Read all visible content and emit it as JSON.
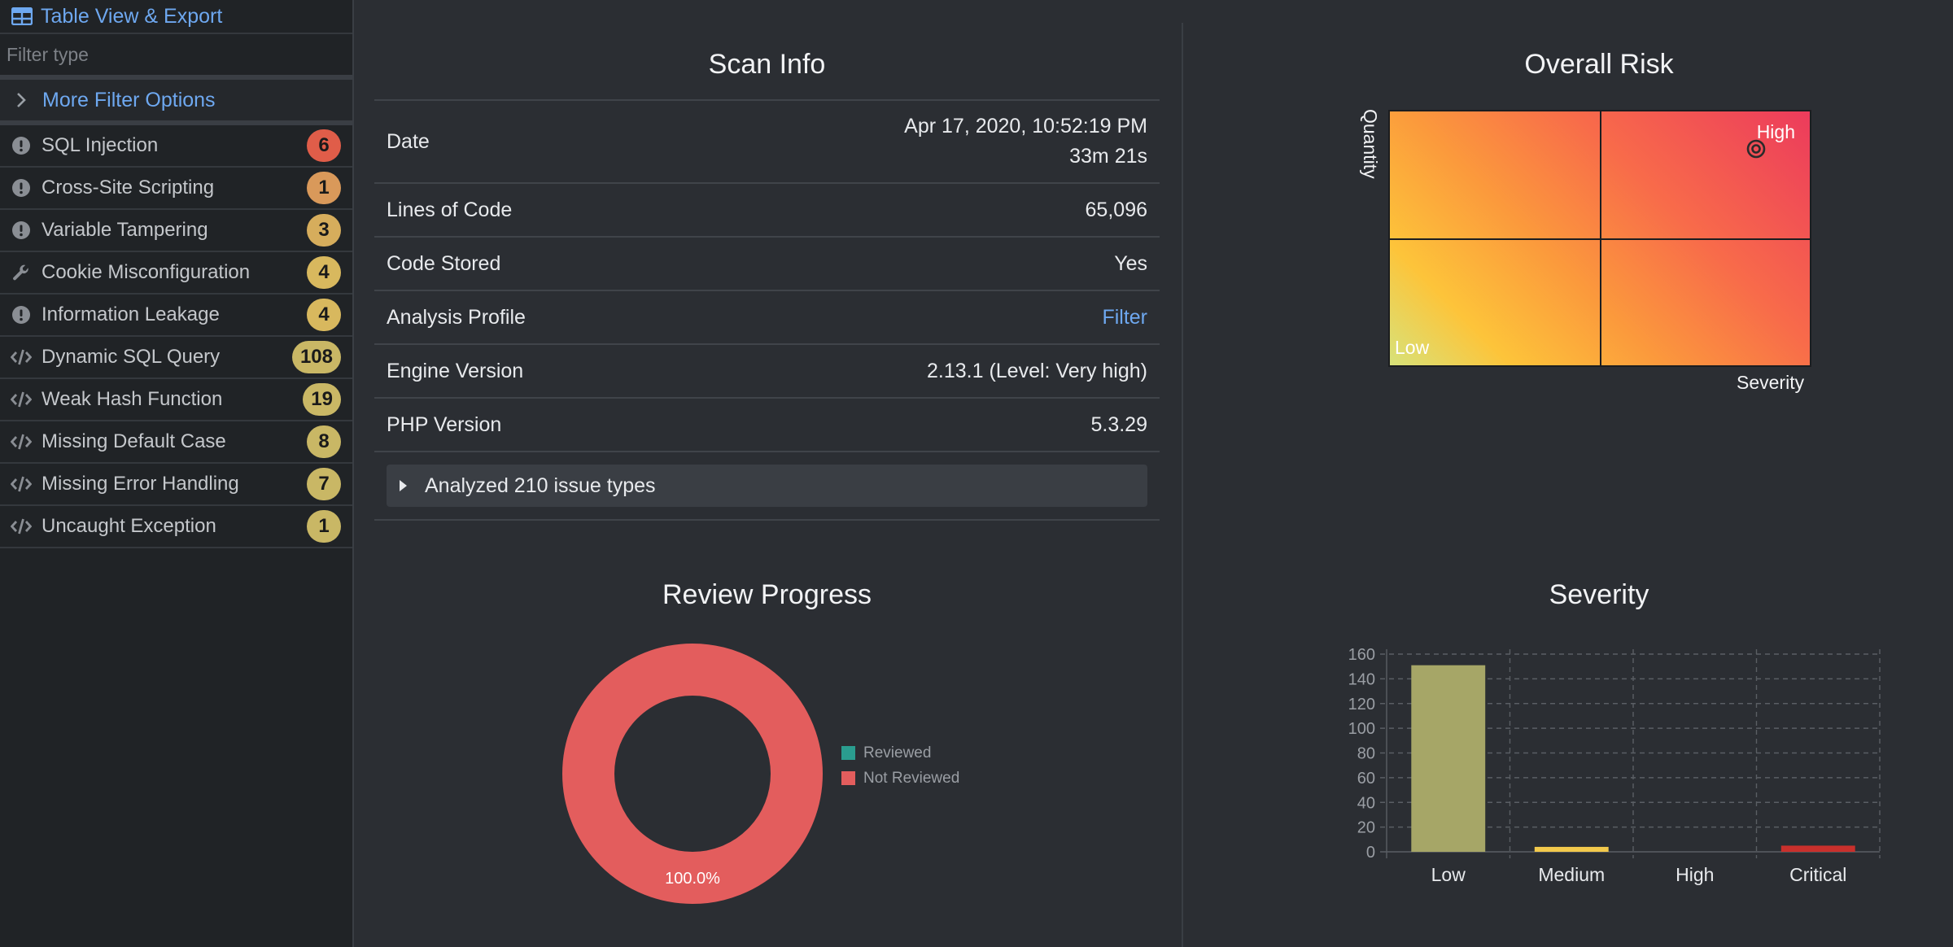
{
  "sidebar": {
    "header_label": "Table View & Export",
    "filter_placeholder": "Filter type",
    "more_filters_label": "More Filter Options",
    "items": [
      {
        "label": "SQL Injection",
        "count": "6",
        "icon": "exclamation-circle-icon",
        "badge_color": "#e05d49"
      },
      {
        "label": "Cross-Site Scripting",
        "count": "1",
        "icon": "exclamation-circle-icon",
        "badge_color": "#d9995a"
      },
      {
        "label": "Variable Tampering",
        "count": "3",
        "icon": "exclamation-circle-icon",
        "badge_color": "#d6ad5c"
      },
      {
        "label": "Cookie Misconfiguration",
        "count": "4",
        "icon": "wrench-icon",
        "badge_color": "#d8b85e"
      },
      {
        "label": "Information Leakage",
        "count": "4",
        "icon": "exclamation-circle-icon",
        "badge_color": "#d8b85e"
      },
      {
        "label": "Dynamic SQL Query",
        "count": "108",
        "icon": "code-icon",
        "badge_color": "#c9b765"
      },
      {
        "label": "Weak Hash Function",
        "count": "19",
        "icon": "code-icon",
        "badge_color": "#c9b765"
      },
      {
        "label": "Missing Default Case",
        "count": "8",
        "icon": "code-icon",
        "badge_color": "#c9b765"
      },
      {
        "label": "Missing Error Handling",
        "count": "7",
        "icon": "code-icon",
        "badge_color": "#c9b765"
      },
      {
        "label": "Uncaught Exception",
        "count": "1",
        "icon": "code-icon",
        "badge_color": "#c9b765"
      }
    ]
  },
  "scan_info": {
    "title": "Scan Info",
    "rows": [
      {
        "label": "Date",
        "value": "Apr 17, 2020, 10:52:19 PM",
        "value2": "33m 21s"
      },
      {
        "label": "Lines of Code",
        "value": "65,096"
      },
      {
        "label": "Code Stored",
        "value": "Yes"
      },
      {
        "label": "Analysis Profile",
        "value": "Filter"
      },
      {
        "label": "Engine Version",
        "value": "2.13.1 (Level: Very high)"
      },
      {
        "label": "PHP Version",
        "value": "5.3.29"
      }
    ],
    "analyzed_label": "Analyzed 210 issue types"
  },
  "overall_risk": {
    "title": "Overall Risk",
    "y_axis_label": "Quantity",
    "x_axis_label": "Severity",
    "high_label": "High",
    "low_label": "Low",
    "marker_icon": "target-icon"
  },
  "review_progress": {
    "title": "Review Progress",
    "colors": {
      "reviewed": "#2a9d8f",
      "not_reviewed": "#e35d5d"
    }
  },
  "severity": {
    "title": "Severity"
  },
  "chart_data": [
    {
      "type": "pie",
      "title": "Review Progress",
      "categories": [
        "Reviewed",
        "Not Reviewed"
      ],
      "values": [
        0,
        100
      ],
      "data_label": "100.0%",
      "legend": "right"
    },
    {
      "type": "bar",
      "title": "Severity",
      "categories": [
        "Low",
        "Medium",
        "High",
        "Critical"
      ],
      "values": [
        151,
        4,
        0,
        5
      ],
      "colors": [
        "#a6a667",
        "#f2c94c",
        "#8a8a8a",
        "#c9302c"
      ],
      "ylim": [
        0,
        160
      ],
      "yticks": [
        0,
        20,
        40,
        60,
        80,
        100,
        120,
        140,
        160
      ],
      "grid": true
    }
  ]
}
